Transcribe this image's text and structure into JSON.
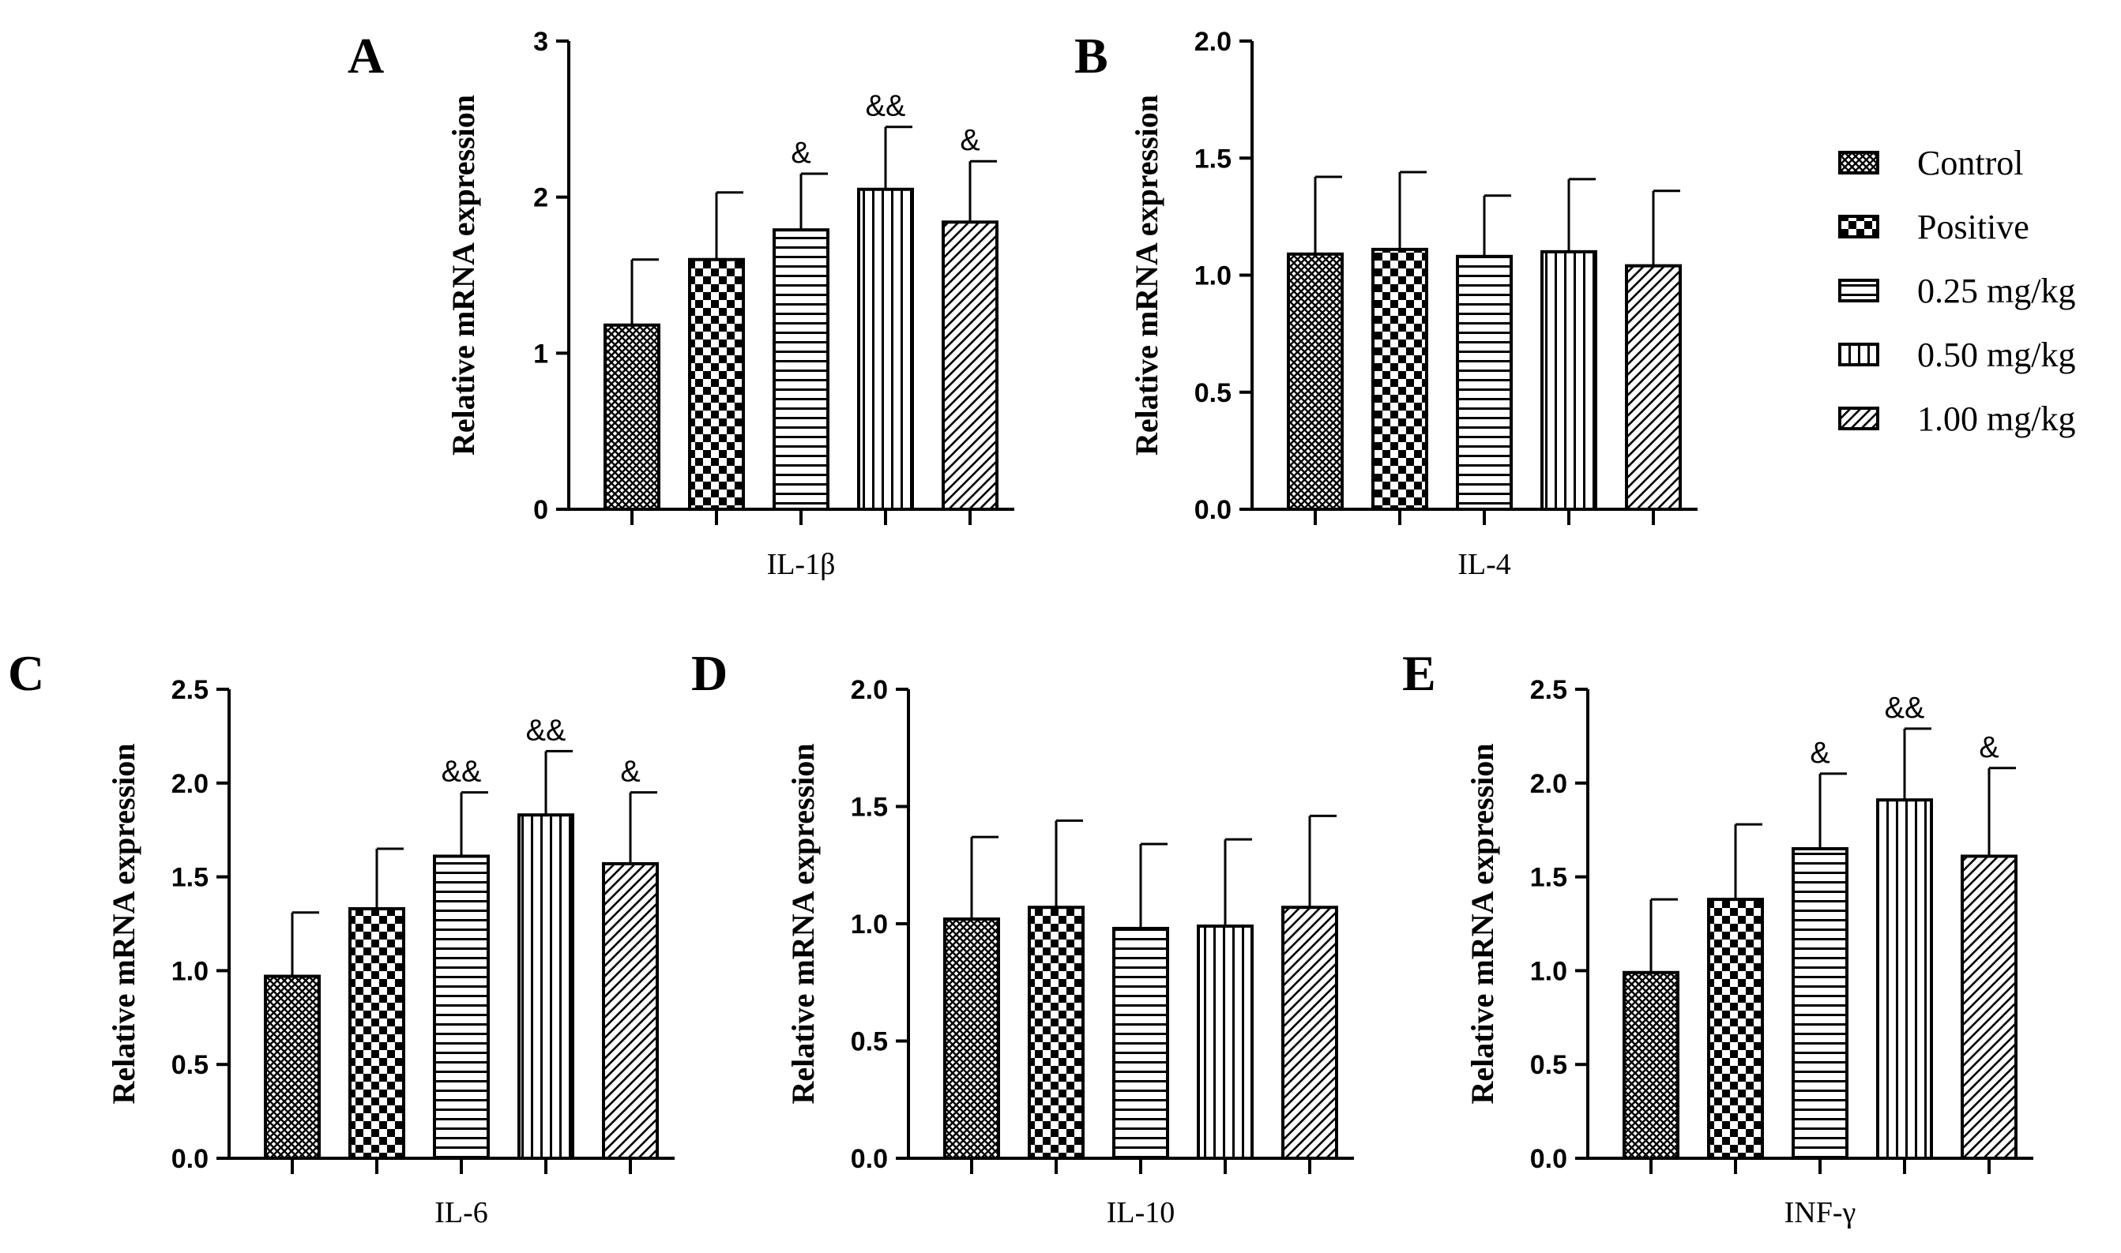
{
  "legend": [
    {
      "label": "Control",
      "pattern": "pat-crosshatch"
    },
    {
      "label": "Positive",
      "pattern": "pat-checker"
    },
    {
      "label": "0.25 mg/kg",
      "pattern": "pat-hlines"
    },
    {
      "label": "0.50 mg/kg",
      "pattern": "pat-vlines"
    },
    {
      "label": "1.00 mg/kg",
      "pattern": "pat-diag"
    }
  ],
  "chart_data": [
    {
      "panel": "A",
      "type": "bar",
      "xlabel": "IL-1β",
      "ylabel": "Relative mRNA expression",
      "ylim": [
        0,
        3
      ],
      "yticks": [
        "0",
        "1",
        "2",
        "3"
      ],
      "categories": [
        "Control",
        "Positive",
        "0.25 mg/kg",
        "0.50 mg/kg",
        "1.00 mg/kg"
      ],
      "values": [
        1.18,
        1.6,
        1.79,
        2.05,
        1.84
      ],
      "errors": [
        0.42,
        0.43,
        0.36,
        0.4,
        0.39
      ],
      "annotations": [
        "",
        "",
        "&",
        "&&",
        "&"
      ]
    },
    {
      "panel": "B",
      "type": "bar",
      "xlabel": "IL-4",
      "ylabel": "Relative mRNA expression",
      "ylim": [
        0,
        2
      ],
      "yticks": [
        "0.0",
        "0.5",
        "1.0",
        "1.5",
        "2.0"
      ],
      "categories": [
        "Control",
        "Positive",
        "0.25 mg/kg",
        "0.50 mg/kg",
        "1.00 mg/kg"
      ],
      "values": [
        1.09,
        1.11,
        1.08,
        1.1,
        1.04
      ],
      "errors": [
        0.33,
        0.33,
        0.26,
        0.31,
        0.32
      ],
      "annotations": [
        "",
        "",
        "",
        "",
        ""
      ]
    },
    {
      "panel": "C",
      "type": "bar",
      "xlabel": "IL-6",
      "ylabel": "Relative mRNA expression",
      "ylim": [
        0,
        2.5
      ],
      "yticks": [
        "0.0",
        "0.5",
        "1.0",
        "1.5",
        "2.0",
        "2.5"
      ],
      "categories": [
        "Control",
        "Positive",
        "0.25 mg/kg",
        "0.50 mg/kg",
        "1.00 mg/kg"
      ],
      "values": [
        0.97,
        1.33,
        1.61,
        1.83,
        1.57
      ],
      "errors": [
        0.34,
        0.32,
        0.34,
        0.34,
        0.38
      ],
      "annotations": [
        "",
        "",
        "&&",
        "&&",
        "&"
      ]
    },
    {
      "panel": "D",
      "type": "bar",
      "xlabel": "IL-10",
      "ylabel": "Relative mRNA expression",
      "ylim": [
        0,
        2
      ],
      "yticks": [
        "0.0",
        "0.5",
        "1.0",
        "1.5",
        "2.0"
      ],
      "categories": [
        "Control",
        "Positive",
        "0.25 mg/kg",
        "0.50 mg/kg",
        "1.00 mg/kg"
      ],
      "values": [
        1.02,
        1.07,
        0.98,
        0.99,
        1.07
      ],
      "errors": [
        0.35,
        0.37,
        0.36,
        0.37,
        0.39
      ],
      "annotations": [
        "",
        "",
        "",
        "",
        ""
      ]
    },
    {
      "panel": "E",
      "type": "bar",
      "xlabel": "INF-γ",
      "ylabel": "Relative mRNA expression",
      "ylim": [
        0,
        2.5
      ],
      "yticks": [
        "0.0",
        "0.5",
        "1.0",
        "1.5",
        "2.0",
        "2.5"
      ],
      "categories": [
        "Control",
        "Positive",
        "0.25 mg/kg",
        "0.50 mg/kg",
        "1.00 mg/kg"
      ],
      "values": [
        0.99,
        1.38,
        1.65,
        1.91,
        1.61
      ],
      "errors": [
        0.39,
        0.4,
        0.4,
        0.38,
        0.47
      ],
      "annotations": [
        "",
        "",
        "&",
        "&&",
        "&"
      ]
    }
  ]
}
